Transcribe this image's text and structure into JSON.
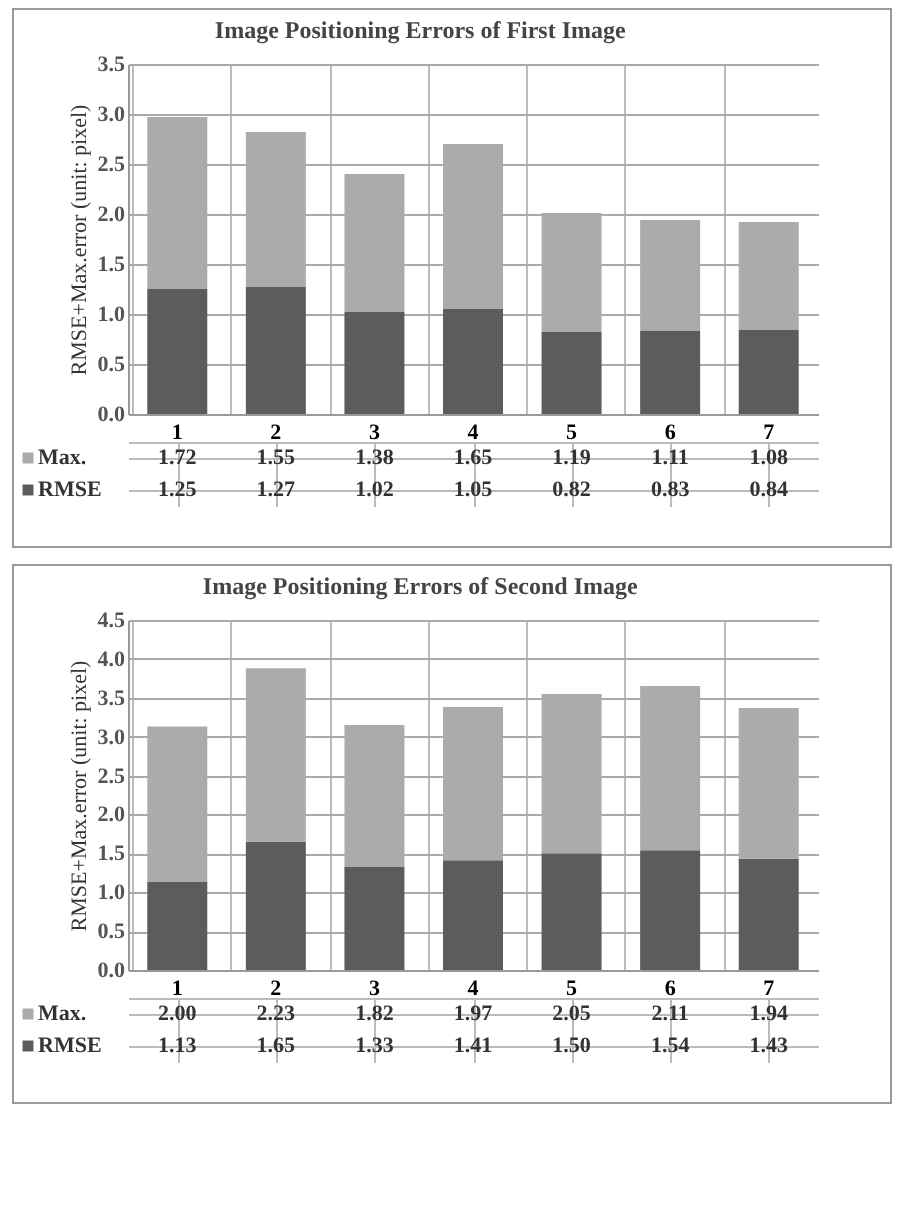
{
  "chart_data": [
    {
      "type": "bar",
      "title": "Image Positioning Errors of First Image",
      "ylabel": "RMSE+Max.error (unit: pixel)",
      "categories": [
        "1",
        "2",
        "3",
        "4",
        "5",
        "6",
        "7"
      ],
      "stacked": true,
      "legend": "bottom",
      "grid": "y",
      "ylim": [
        0,
        3.5
      ],
      "yticks": [
        {
          "value": 0,
          "label": "0.0"
        },
        0.5,
        {
          "value": 1,
          "label": "1.0"
        },
        1.5,
        {
          "value": 2,
          "label": "2.0"
        },
        2.5,
        {
          "value": 3,
          "label": "3.0"
        },
        3.5
      ],
      "series": [
        {
          "name": "RMSE",
          "color": "#5c5c5c",
          "values": [
            1.25,
            1.27,
            1.02,
            1.05,
            0.82,
            0.83,
            0.84
          ],
          "value_labels": [
            "1.25",
            "1.27",
            "1.02",
            "1.05",
            "0.82",
            "0.83",
            "0.84"
          ]
        },
        {
          "name": "Max.",
          "color": "#ababab",
          "values": [
            1.72,
            1.55,
            1.38,
            1.65,
            1.19,
            1.11,
            1.08
          ],
          "value_labels": [
            "1.72",
            "1.55",
            "1.38",
            "1.65",
            "1.19",
            "1.11",
            "1.08"
          ]
        }
      ]
    },
    {
      "type": "bar",
      "title": "Image Positioning Errors of Second Image",
      "ylabel": "RMSE+Max.error (unit: pixel)",
      "categories": [
        "1",
        "2",
        "3",
        "4",
        "5",
        "6",
        "7"
      ],
      "stacked": true,
      "legend": "bottom",
      "grid": "y",
      "ylim": [
        0,
        4.5
      ],
      "yticks": [
        {
          "value": 0,
          "label": "0.0"
        },
        0.5,
        {
          "value": 1,
          "label": "1.0"
        },
        1.5,
        {
          "value": 2,
          "label": "2.0"
        },
        2.5,
        {
          "value": 3,
          "label": "3.0"
        },
        3.5,
        {
          "value": 4,
          "label": "4.0"
        },
        4.5
      ],
      "series": [
        {
          "name": "RMSE",
          "color": "#5c5c5c",
          "values": [
            1.13,
            1.65,
            1.33,
            1.41,
            1.5,
            1.54,
            1.43
          ],
          "value_labels": [
            "1.13",
            "1.65",
            "1.33",
            "1.41",
            "1.50",
            "1.54",
            "1.43"
          ]
        },
        {
          "name": "Max.",
          "color": "#ababab",
          "values": [
            2.0,
            2.23,
            1.82,
            1.97,
            2.05,
            2.11,
            1.94
          ],
          "value_labels": [
            "2.00",
            "2.23",
            "1.82",
            "1.97",
            "2.05",
            "2.11",
            "1.94"
          ]
        }
      ]
    }
  ]
}
